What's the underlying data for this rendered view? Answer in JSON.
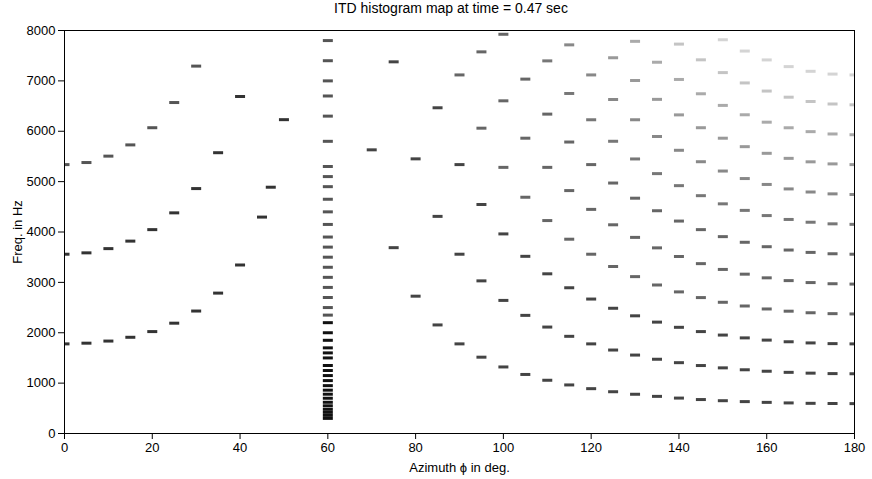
{
  "chart_data": {
    "type": "scatter",
    "marker": "dash",
    "title": "ITD histogram map at time = 0.47 sec",
    "x_label": "Azimuth ϕ in deg.",
    "y_label": "Freq. in Hz",
    "xlim": [
      0,
      180
    ],
    "ylim": [
      0,
      8000
    ],
    "xticks": [
      0,
      20,
      40,
      60,
      80,
      100,
      120,
      140,
      160,
      180
    ],
    "yticks": [
      0,
      1000,
      2000,
      3000,
      4000,
      5000,
      6000,
      7000,
      8000
    ],
    "grid": false,
    "series": [
      {
        "color": "#333333",
        "x": [
          0,
          5,
          10,
          15,
          20,
          25,
          30,
          35,
          40,
          45,
          47,
          50
        ],
        "y": [
          1779,
          1793,
          1835,
          1910,
          2023,
          2190,
          2431,
          2787,
          3345,
          4296,
          4889,
          6230
        ]
      },
      {
        "color": "#333333",
        "x": [
          0,
          5,
          10,
          15,
          20,
          25,
          30,
          35,
          40
        ],
        "y": [
          3559,
          3586,
          3670,
          3819,
          4047,
          4380,
          4862,
          5574,
          6690
        ]
      },
      {
        "color": "#555555",
        "x": [
          0,
          5,
          10,
          15,
          20,
          25,
          30
        ],
        "y": [
          5338,
          5379,
          5506,
          5729,
          6070,
          6570,
          7293
        ]
      },
      {
        "color": "#111111",
        "x": [
          60,
          60,
          60,
          60,
          60,
          60,
          60,
          60,
          60,
          60,
          60,
          60,
          60,
          60,
          60,
          60,
          60,
          60,
          60,
          60
        ],
        "y": [
          300,
          360,
          420,
          480,
          550,
          620,
          700,
          780,
          860,
          950,
          1050,
          1150,
          1250,
          1350,
          1500,
          1600,
          1700,
          1850,
          2000,
          2200
        ]
      },
      {
        "color": "#555555",
        "x": [
          60,
          60,
          60,
          60,
          60,
          60,
          60,
          60,
          60,
          60,
          60,
          60,
          60,
          60,
          60,
          60,
          60,
          60,
          60,
          60,
          60
        ],
        "y": [
          2350,
          2500,
          2700,
          2900,
          3100,
          3300,
          3500,
          3700,
          3900,
          4150,
          4400,
          4650,
          4900,
          5100,
          5300,
          5800,
          6300,
          6700,
          7000,
          7400,
          7800
        ]
      },
      {
        "color": "#444444",
        "x": [
          70,
          75,
          80,
          85,
          90,
          95,
          100,
          105,
          110,
          115,
          120,
          125,
          130,
          135,
          140,
          145,
          150,
          155,
          160,
          165,
          170,
          175,
          180
        ],
        "y": [
          5631,
          3689,
          2726,
          2155,
          1779,
          1515,
          1321,
          1172,
          1057,
          964,
          890,
          829,
          779,
          737,
          703,
          674,
          651,
          633,
          618,
          607,
          599,
          595,
          593
        ]
      },
      {
        "color": "#444444",
        "x": [
          75,
          80,
          85,
          90,
          95,
          100,
          105,
          110,
          115,
          120,
          125,
          130,
          135,
          140,
          145,
          150,
          155,
          160,
          165,
          170,
          175,
          180
        ],
        "y": [
          7378,
          5452,
          4310,
          3559,
          3030,
          2642,
          2345,
          2113,
          1929,
          1779,
          1657,
          1557,
          1474,
          1406,
          1349,
          1303,
          1265,
          1236,
          1214,
          1198,
          1189,
          1186
        ]
      },
      {
        "color": "#444444",
        "x": [
          85,
          90,
          95,
          100,
          105,
          110,
          115,
          120,
          125,
          130,
          135,
          140,
          145,
          150,
          155,
          160,
          165,
          170,
          175,
          180
        ],
        "y": [
          6466,
          5338,
          4546,
          3962,
          3517,
          3170,
          2893,
          2669,
          2486,
          2336,
          2211,
          2108,
          2023,
          1954,
          1898,
          1854,
          1821,
          1798,
          1784,
          1779
        ]
      },
      {
        "color": "#666666",
        "x": [
          90,
          95,
          100,
          105,
          110,
          115,
          120,
          125,
          130,
          135,
          140,
          145,
          150,
          155,
          160,
          165,
          170,
          175,
          180
        ],
        "y": [
          7118,
          6061,
          5283,
          4690,
          4227,
          3857,
          3559,
          3315,
          3114,
          2948,
          2811,
          2698,
          2605,
          2531,
          2472,
          2428,
          2397,
          2379,
          2373
        ]
      },
      {
        "color": "#666666",
        "x": [
          95,
          100,
          105,
          110,
          115,
          120,
          125,
          130,
          135,
          140,
          145,
          150,
          155,
          160,
          165,
          170,
          175,
          180
        ],
        "y": [
          7576,
          6604,
          5862,
          5283,
          4822,
          4449,
          4143,
          3893,
          3685,
          3514,
          3372,
          3257,
          3163,
          3090,
          3035,
          2996,
          2973,
          2966
        ]
      },
      {
        "color": "#666666",
        "x": [
          100,
          105,
          110,
          115,
          120,
          125,
          130,
          135,
          140,
          145,
          150,
          155,
          160,
          165,
          170,
          175,
          180
        ],
        "y": [
          7925,
          7035,
          6340,
          5786,
          5338,
          4972,
          4671,
          4422,
          4217,
          4047,
          3908,
          3796,
          3708,
          3642,
          3595,
          3568,
          3559
        ]
      },
      {
        "color": "#777777",
        "x": [
          110,
          115,
          120,
          125,
          130,
          135,
          140,
          145,
          150,
          155,
          160,
          165,
          170,
          175,
          180
        ],
        "y": [
          7397,
          6750,
          6228,
          5801,
          5450,
          5159,
          4920,
          4721,
          4559,
          4429,
          4326,
          4249,
          4194,
          4162,
          4152
        ]
      },
      {
        "color": "#888888",
        "x": [
          115,
          120,
          125,
          130,
          135,
          140,
          145,
          150,
          155,
          160,
          165,
          170,
          175,
          180
        ],
        "y": [
          7715,
          7118,
          6630,
          6228,
          5896,
          5622,
          5395,
          5210,
          5061,
          4944,
          4855,
          4794,
          4757,
          4745
        ]
      },
      {
        "color": "#999999",
        "x": [
          125,
          130,
          135,
          140,
          145,
          150,
          155,
          160,
          165,
          170,
          175,
          180
        ],
        "y": [
          7459,
          7007,
          6633,
          6325,
          6070,
          5862,
          5694,
          5562,
          5462,
          5393,
          5352,
          5338
        ]
      },
      {
        "color": "#aaaaaa",
        "x": [
          130,
          135,
          140,
          145,
          150,
          155,
          160,
          165,
          170,
          175,
          180
        ],
        "y": [
          7785,
          7370,
          7028,
          6744,
          6513,
          6327,
          6180,
          6069,
          5992,
          5946,
          5931
        ]
      },
      {
        "color": "#c4c4c4",
        "x": [
          140,
          145,
          150,
          155,
          160,
          165,
          170,
          175,
          180
        ],
        "y": [
          7730,
          7418,
          7164,
          6959,
          6798,
          6676,
          6591,
          6541,
          6525
        ]
      },
      {
        "color": "#d4d4d4",
        "x": [
          150,
          155,
          160,
          165,
          170,
          175,
          180
        ],
        "y": [
          7816,
          7592,
          7416,
          7283,
          7190,
          7135,
          7118
        ]
      }
    ]
  }
}
